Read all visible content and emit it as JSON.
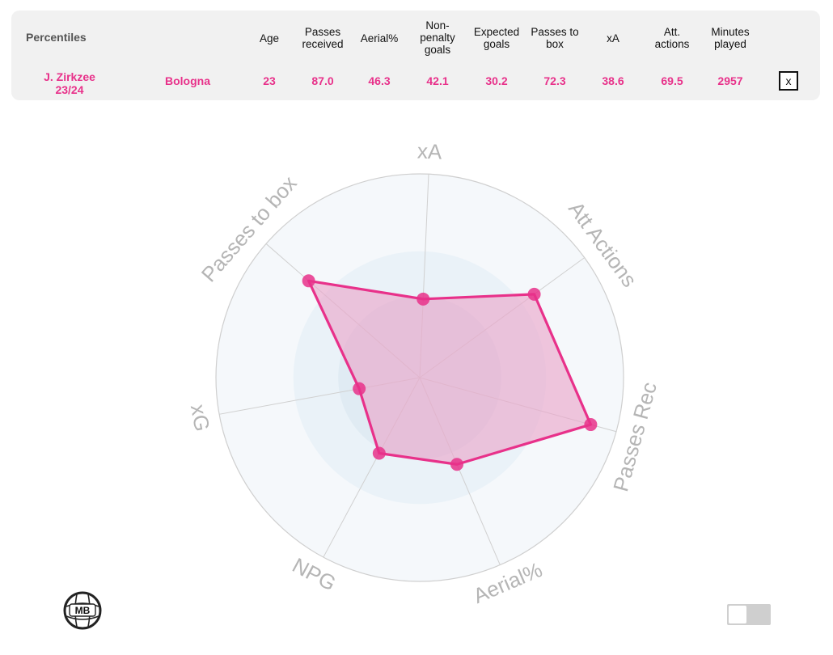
{
  "header": {
    "percentiles_label": "Percentiles",
    "columns": [
      {
        "label": "Age",
        "value": "23"
      },
      {
        "label": "Passes received",
        "value": "87.0"
      },
      {
        "label": "Aerial%",
        "value": "46.3"
      },
      {
        "label": "Non-penalty goals",
        "value": "42.1"
      },
      {
        "label": "Expected goals",
        "value": "30.2"
      },
      {
        "label": "Passes to box",
        "value": "72.3"
      },
      {
        "label": "xA",
        "value": "38.6"
      },
      {
        "label": "Att. actions",
        "value": "69.5"
      },
      {
        "label": "Minutes played",
        "value": "2957"
      }
    ],
    "player_name": "J. Zirkzee",
    "season": "23/24",
    "team": "Bologna",
    "close_label": "x"
  },
  "colors": {
    "accent": "#e8318a",
    "fill": "#e9a8cb",
    "ring_outer": "#f5f8fb",
    "ring_mid": "#eaf2f8",
    "ring_inner": "#e0ebf3",
    "axis_label": "#b5b5b5"
  },
  "chart_data": {
    "type": "radar",
    "axes": [
      "xA",
      "Att Actions",
      "Passes Rec",
      "Aerial%",
      "NPG",
      "xG",
      "Passes to box"
    ],
    "values": [
      38.6,
      69.5,
      87.0,
      46.3,
      42.1,
      30.2,
      72.3
    ],
    "range": [
      0,
      100
    ],
    "rings": 4,
    "series_name": "J. Zirkzee 23/24"
  },
  "logo": {
    "text": "MB",
    "icon": "mb-logo-icon"
  },
  "toggle": {
    "state": "off"
  }
}
